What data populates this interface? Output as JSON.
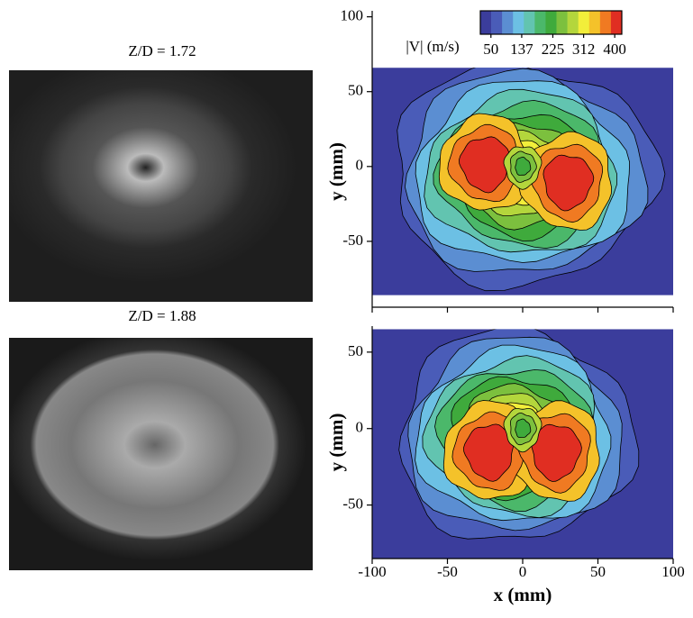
{
  "panels": [
    {
      "label": "Z/D = 1.72"
    },
    {
      "label": "Z/D = 1.88"
    }
  ],
  "chart_data": [
    {
      "type": "contour",
      "xlim": [
        -100,
        100
      ],
      "xticks": [
        -100,
        -50,
        0,
        50,
        100
      ],
      "ylim": [
        -94,
        104
      ],
      "yticks": [
        -50,
        0,
        50,
        100
      ],
      "ylabel": "y (mm)",
      "colorbar": {
        "label": "|V| (m/s)",
        "lim": [
          20,
          420
        ],
        "ticks": [
          50,
          137,
          225,
          312,
          400
        ],
        "colors": [
          "#3b3d9c",
          "#4a5cb8",
          "#5b8ed2",
          "#6cc0e4",
          "#62c4b0",
          "#4bb86a",
          "#3faa3c",
          "#7cc03e",
          "#b4d63c",
          "#f2ee3a",
          "#f4c22a",
          "#f07a22",
          "#e02e22"
        ]
      }
    },
    {
      "type": "contour",
      "xlim": [
        -100,
        100
      ],
      "xticks": [
        -100,
        -50,
        0,
        50,
        100
      ],
      "xlabel": "x (mm)",
      "ylim": [
        -85,
        67
      ],
      "yticks": [
        -50,
        0,
        50
      ],
      "ylabel": "y (mm)"
    }
  ]
}
